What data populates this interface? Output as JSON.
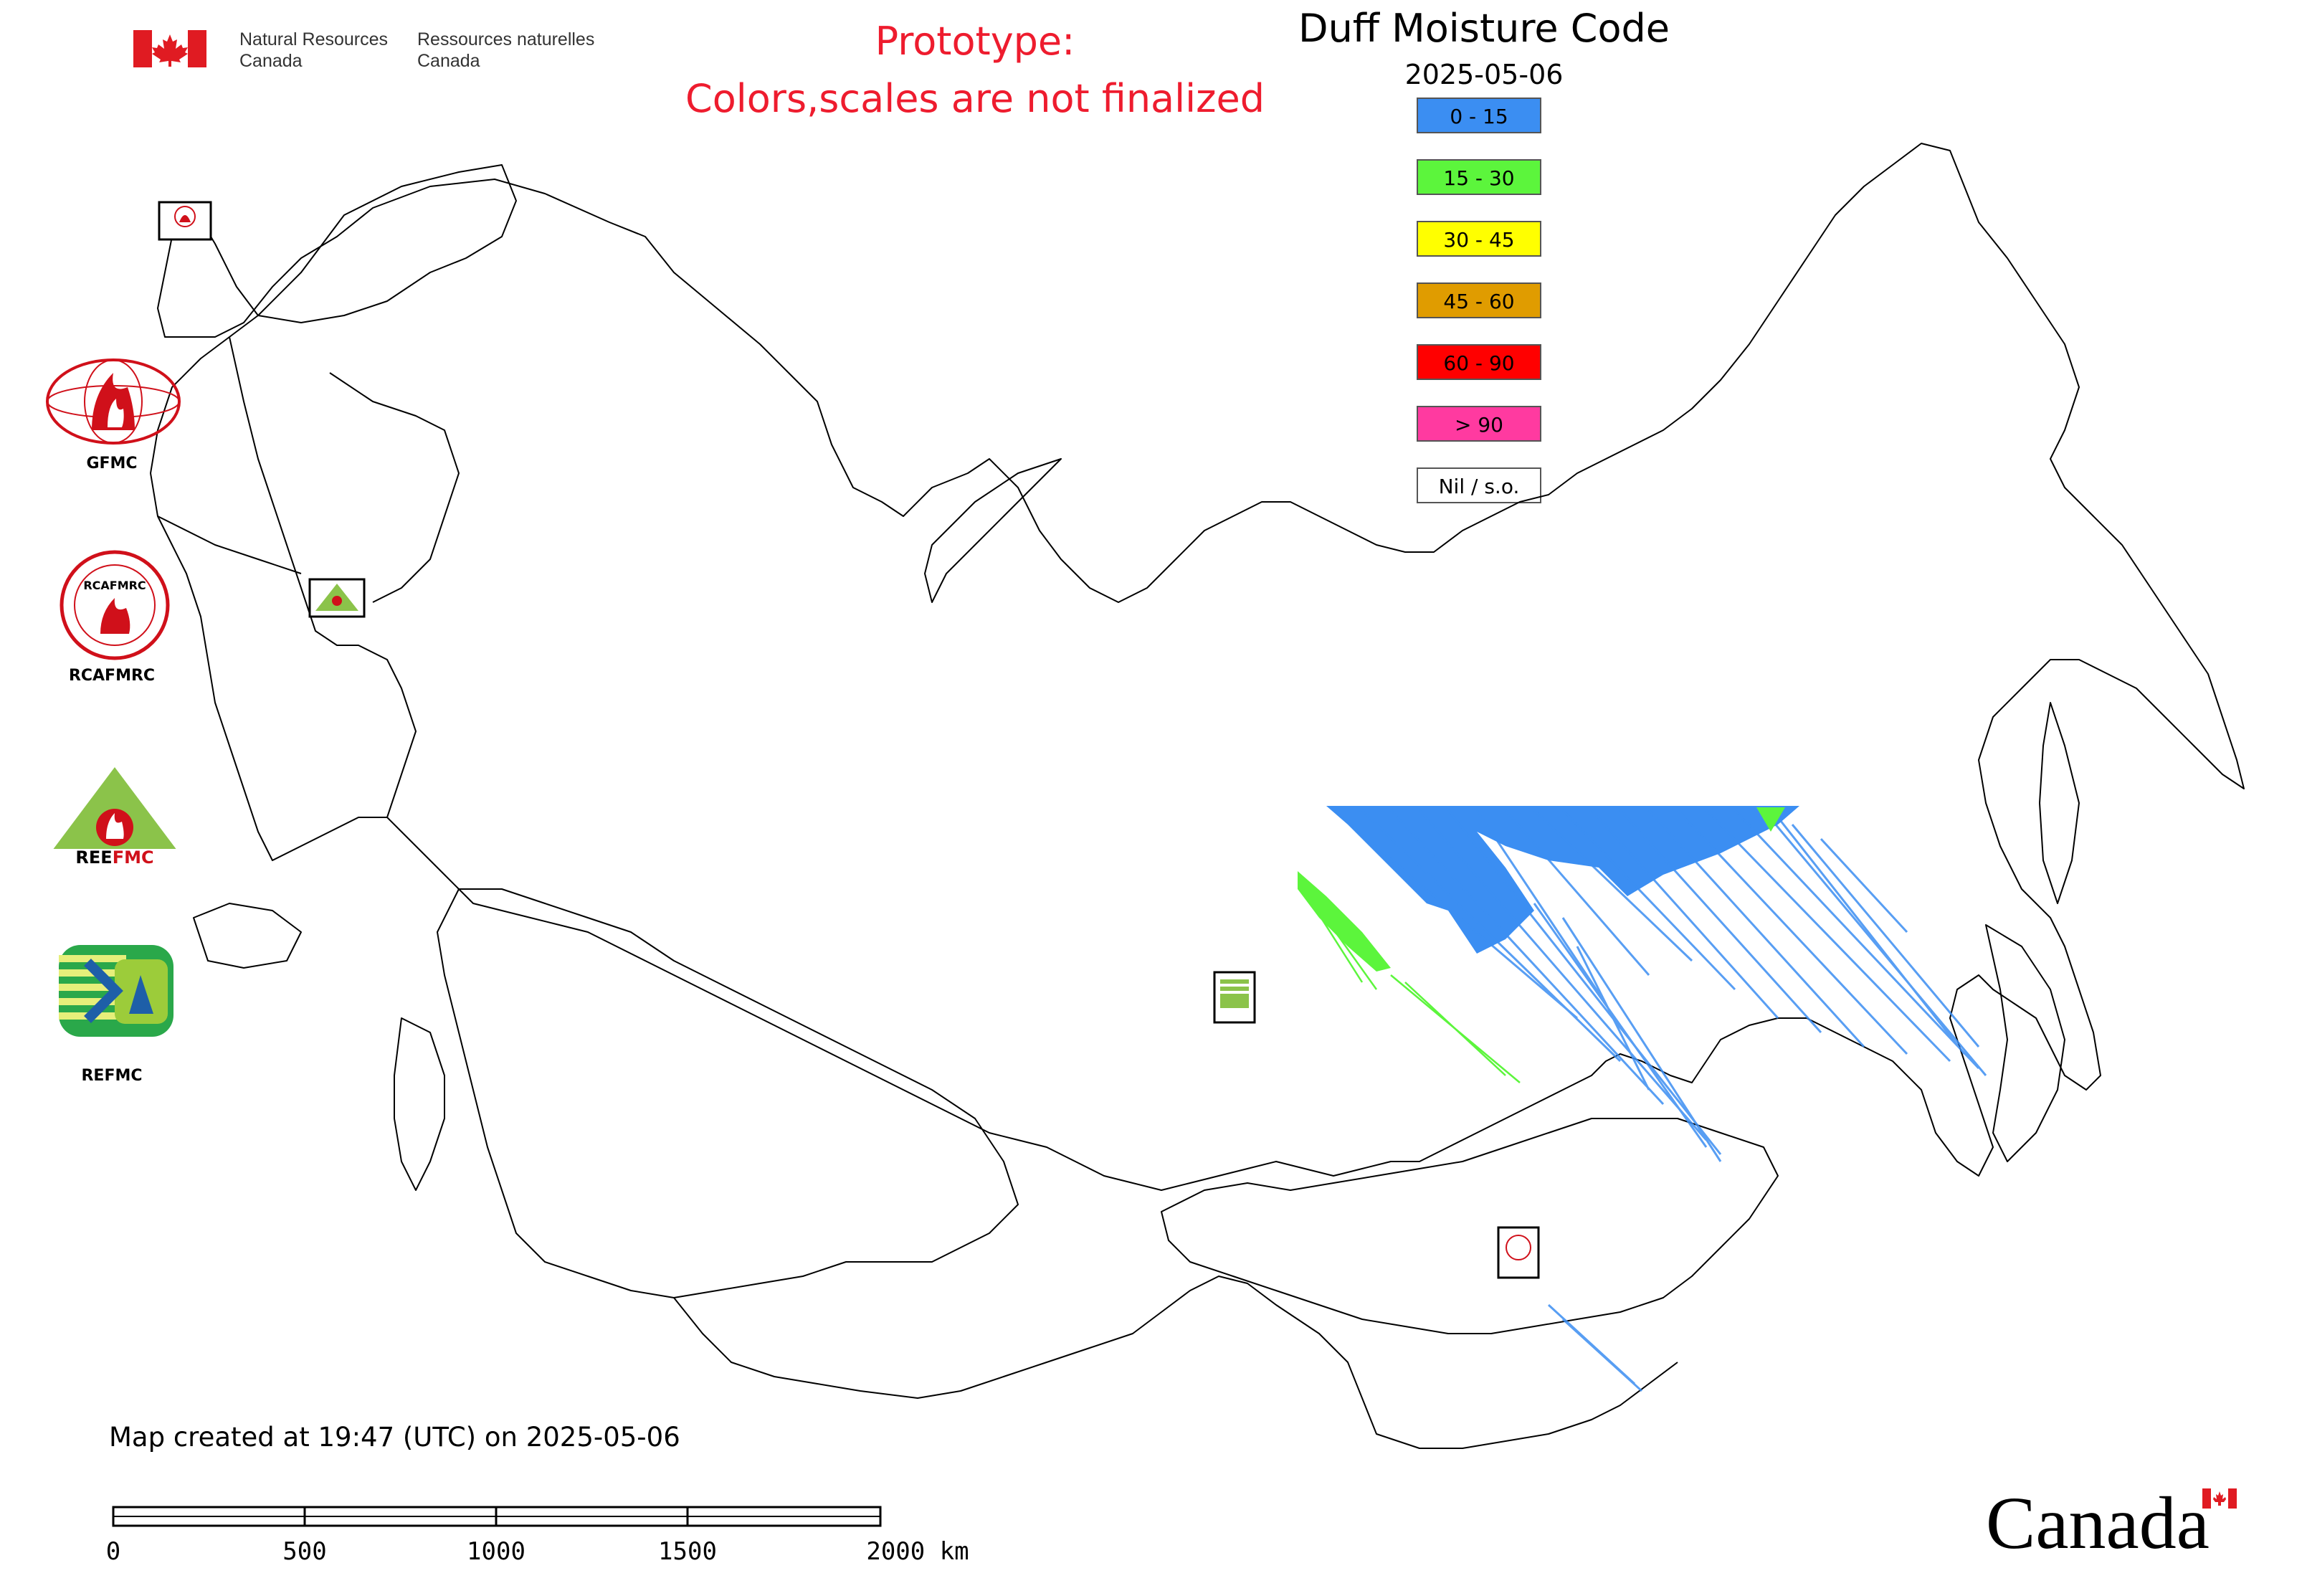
{
  "header": {
    "org_en_line1": "Natural Resources",
    "org_en_line2": "Canada",
    "org_fr_line1": "Ressources naturelles",
    "org_fr_line2": "Canada",
    "flag_icon": "canada-flag-icon",
    "accent_red": "#e01b22"
  },
  "notice": {
    "line1": "Prototype:",
    "line2": "Colors,scales are not finalized",
    "color": "#ee1c2e"
  },
  "map": {
    "title": "Duff Moisture Code",
    "date": "2025-05-06"
  },
  "legend": [
    {
      "label": "0 - 15",
      "color": "#3b8ef2"
    },
    {
      "label": "15 - 30",
      "color": "#5cf53c"
    },
    {
      "label": "30 - 45",
      "color": "#ffff00"
    },
    {
      "label": "45 - 60",
      "color": "#e09c00"
    },
    {
      "label": "60 - 90",
      "color": "#ff0000"
    },
    {
      "label": "> 90",
      "color": "#ff3aa0"
    },
    {
      "label": "Nil / s.o.",
      "color": "#ffffff"
    }
  ],
  "logos": [
    {
      "name": "GFMC",
      "icon": "gfmc-logo"
    },
    {
      "name": "RCAFMRC",
      "icon": "rcafmrc-logo"
    },
    {
      "name": "REEFMC",
      "icon": "reefmc-logo"
    },
    {
      "name": "REFMC",
      "icon": "refmc-logo"
    }
  ],
  "footer": {
    "created": "Map created at 19:47 (UTC) on 2025-05-06",
    "scale_ticks": [
      "0",
      "500",
      "1000",
      "1500",
      "2000 km"
    ],
    "wordmark": "Canada"
  }
}
